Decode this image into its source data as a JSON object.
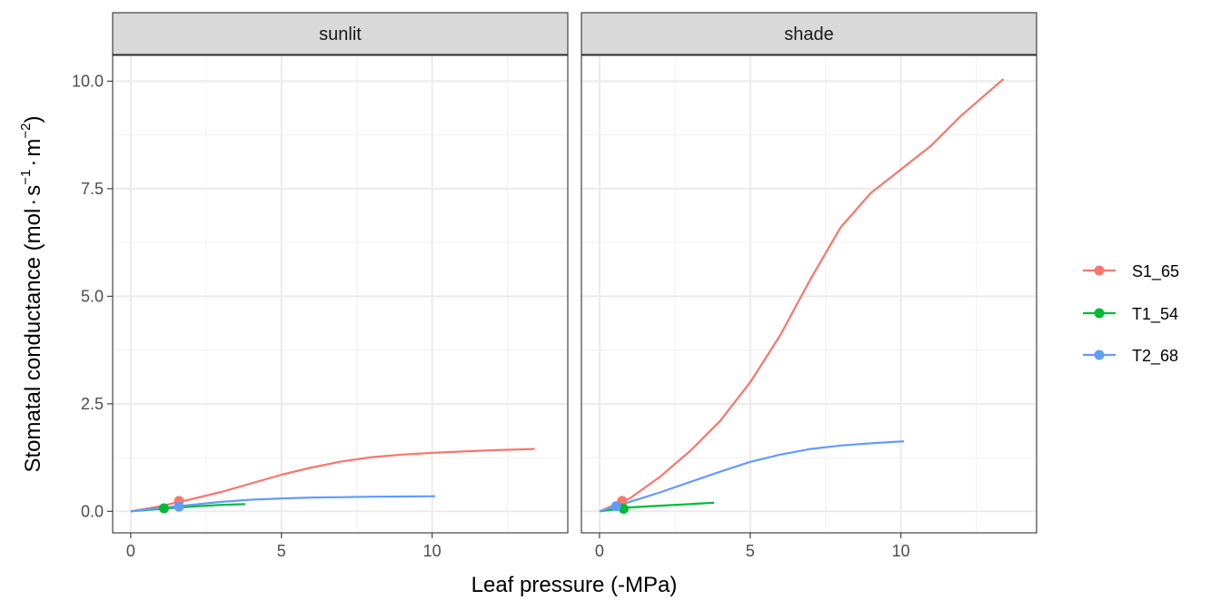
{
  "chart_data": {
    "type": "line",
    "xlabel": "Leaf pressure (-MPa)",
    "ylabel_parts": [
      "Stomatal conductance (mol",
      "s",
      "−1",
      "m",
      "−2",
      ")"
    ],
    "xlim": [
      -0.6,
      14.5
    ],
    "ylim": [
      -0.5,
      10.6
    ],
    "x_ticks": [
      0,
      5,
      10
    ],
    "x_tick_labels": [
      "0",
      "5",
      "10"
    ],
    "y_ticks": [
      0,
      2.5,
      5,
      7.5,
      10
    ],
    "y_tick_labels": [
      "0.0",
      "2.5",
      "5.0",
      "7.5",
      "10.0"
    ],
    "grid": true,
    "legend_position": "right",
    "colors": {
      "S1_65": "#F8766D",
      "T1_54": "#00BA38",
      "T2_68": "#619CFF"
    },
    "legend": [
      "S1_65",
      "T1_54",
      "T2_68"
    ],
    "panels": [
      {
        "strip_label": "sunlit",
        "series": [
          {
            "name": "S1_65",
            "x": [
              0,
              1,
              2,
              3,
              4,
              5,
              6,
              7,
              8,
              9,
              10,
              11,
              12,
              13.4
            ],
            "y": [
              0,
              0.12,
              0.28,
              0.45,
              0.65,
              0.85,
              1.02,
              1.16,
              1.26,
              1.32,
              1.36,
              1.39,
              1.42,
              1.45
            ],
            "point": [
              1.6,
              0.24
            ]
          },
          {
            "name": "T1_54",
            "x": [
              0,
              1,
              2,
              3,
              3.8
            ],
            "y": [
              0,
              0.06,
              0.11,
              0.15,
              0.17
            ],
            "point": [
              1.1,
              0.07
            ]
          },
          {
            "name": "T2_68",
            "x": [
              0,
              1,
              2,
              3,
              4,
              5,
              6,
              7,
              8,
              9,
              10.1
            ],
            "y": [
              0,
              0.08,
              0.15,
              0.22,
              0.27,
              0.3,
              0.32,
              0.33,
              0.34,
              0.345,
              0.35
            ],
            "point": [
              1.6,
              0.11
            ]
          }
        ]
      },
      {
        "strip_label": "shade",
        "series": [
          {
            "name": "S1_65",
            "x": [
              0,
              1,
              2,
              3,
              4,
              5,
              6,
              7,
              8,
              9,
              10,
              11,
              12,
              13.4
            ],
            "y": [
              0,
              0.3,
              0.8,
              1.4,
              2.1,
              3.0,
              4.1,
              5.4,
              6.6,
              7.4,
              7.95,
              8.5,
              9.2,
              10.05
            ],
            "point": [
              0.75,
              0.24
            ]
          },
          {
            "name": "T1_54",
            "x": [
              0,
              1,
              2,
              3,
              3.8
            ],
            "y": [
              0,
              0.09,
              0.13,
              0.17,
              0.2
            ],
            "point": [
              0.8,
              0.06
            ]
          },
          {
            "name": "T2_68",
            "x": [
              0,
              1,
              2,
              3,
              4,
              5,
              6,
              7,
              8,
              9,
              10.1
            ],
            "y": [
              0,
              0.22,
              0.44,
              0.68,
              0.92,
              1.15,
              1.32,
              1.45,
              1.53,
              1.58,
              1.63
            ],
            "point": [
              0.55,
              0.12
            ]
          }
        ]
      }
    ]
  }
}
